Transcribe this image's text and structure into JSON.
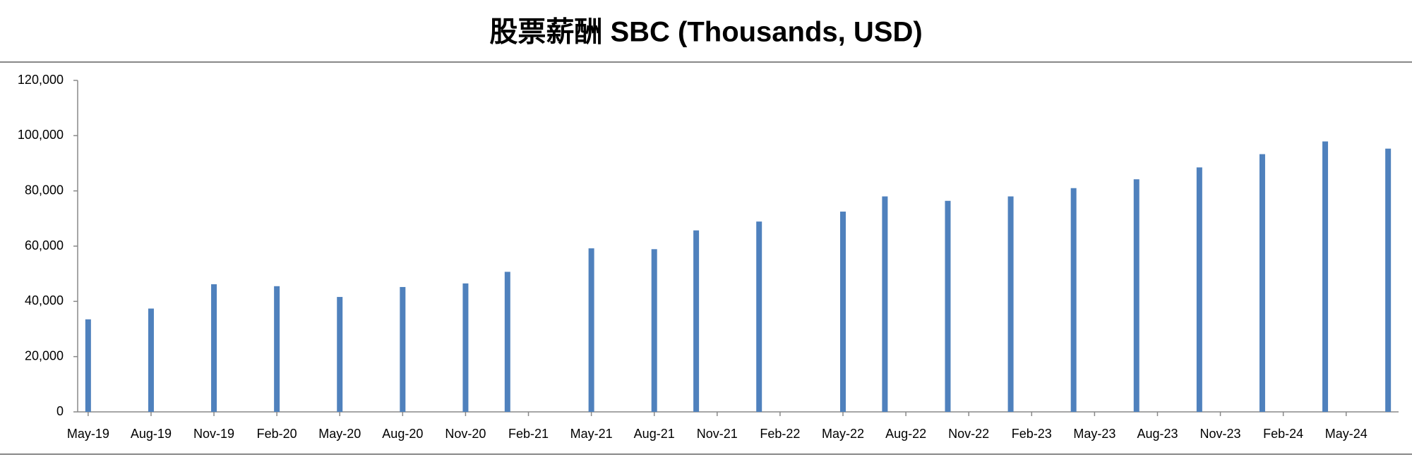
{
  "chart_data": {
    "type": "bar",
    "title": "股票薪酬 SBC (Thousands, USD)",
    "x": [
      "2019-05",
      "2019-08",
      "2019-11",
      "2020-02",
      "2020-05",
      "2020-08",
      "2020-11",
      "2021-01",
      "2021-05",
      "2021-08",
      "2021-10",
      "2022-01",
      "2022-05",
      "2022-07",
      "2022-10",
      "2023-01",
      "2023-04",
      "2023-07",
      "2023-10",
      "2024-01",
      "2024-04",
      "2024-07"
    ],
    "values": [
      33500,
      37400,
      46200,
      45500,
      41600,
      45200,
      46500,
      50700,
      59200,
      58900,
      65700,
      68900,
      72500,
      78000,
      76400,
      78000,
      81000,
      84200,
      88500,
      93300,
      97900,
      95300
    ],
    "color": "#4f81bd",
    "xlim": [
      "2019-05",
      "2024-07"
    ],
    "xticks": [
      {
        "value": "2019-05",
        "label": "May-19"
      },
      {
        "value": "2019-08",
        "label": "Aug-19"
      },
      {
        "value": "2019-11",
        "label": "Nov-19"
      },
      {
        "value": "2020-02",
        "label": "Feb-20"
      },
      {
        "value": "2020-05",
        "label": "May-20"
      },
      {
        "value": "2020-08",
        "label": "Aug-20"
      },
      {
        "value": "2020-11",
        "label": "Nov-20"
      },
      {
        "value": "2021-02",
        "label": "Feb-21"
      },
      {
        "value": "2021-05",
        "label": "May-21"
      },
      {
        "value": "2021-08",
        "label": "Aug-21"
      },
      {
        "value": "2021-11",
        "label": "Nov-21"
      },
      {
        "value": "2022-02",
        "label": "Feb-22"
      },
      {
        "value": "2022-05",
        "label": "May-22"
      },
      {
        "value": "2022-08",
        "label": "Aug-22"
      },
      {
        "value": "2022-11",
        "label": "Nov-22"
      },
      {
        "value": "2023-02",
        "label": "Feb-23"
      },
      {
        "value": "2023-05",
        "label": "May-23"
      },
      {
        "value": "2023-08",
        "label": "Aug-23"
      },
      {
        "value": "2023-11",
        "label": "Nov-23"
      },
      {
        "value": "2024-02",
        "label": "Feb-24"
      },
      {
        "value": "2024-05",
        "label": "May-24"
      }
    ],
    "ylim": [
      0,
      120000
    ],
    "yticks": [
      0,
      {
        "value": 20000,
        "label": "20,000"
      },
      {
        "value": 40000,
        "label": "40,000"
      },
      {
        "value": 60000,
        "label": "60,000"
      },
      {
        "value": 80000,
        "label": "80,000"
      },
      {
        "value": 100000,
        "label": "100,000"
      },
      {
        "value": 120000,
        "label": "120,000"
      }
    ],
    "grid": false
  }
}
